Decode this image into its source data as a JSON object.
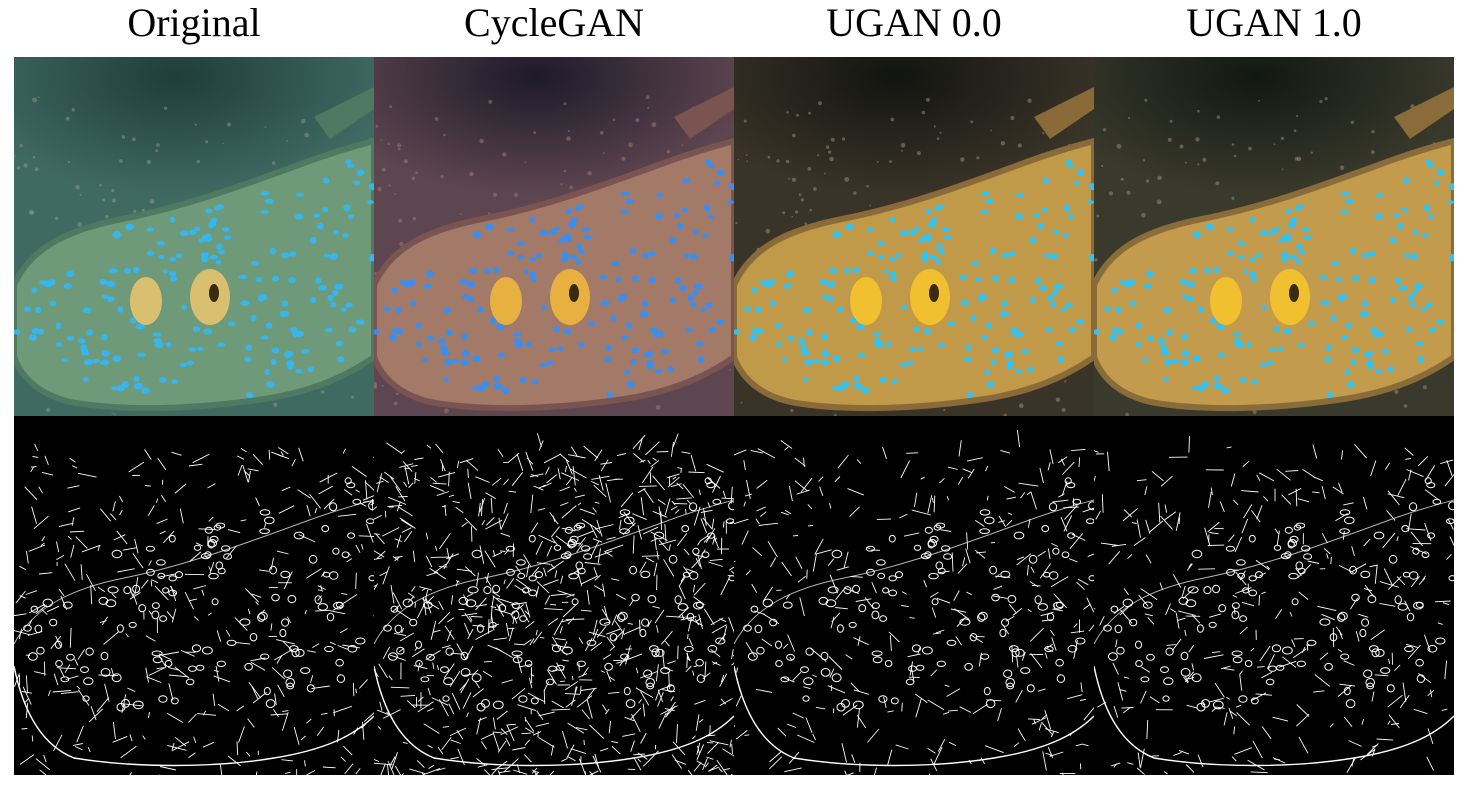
{
  "figure": {
    "columns": [
      {
        "id": "original",
        "title": "Original",
        "bg": "#3f6a62",
        "water": "#1f3d3c",
        "body": "#6f9a7a",
        "rim": "#4f7a62",
        "spot": "#35b6ee",
        "eye": "#d8c070",
        "sand": "#8f9a8a",
        "edge_density": 1.0
      },
      {
        "id": "cyclegan",
        "title": "CycleGAN",
        "bg": "#5e4650",
        "water": "#1e1a2a",
        "body": "#a37a68",
        "rim": "#7a5450",
        "spot": "#3a8ef0",
        "eye": "#e8b040",
        "sand": "#9a8078",
        "edge_density": 2.2
      },
      {
        "id": "ugan-0-0",
        "title": "UGAN 0.0",
        "bg": "#3a3428",
        "water": "#121410",
        "body": "#c09a48",
        "rim": "#8a6a38",
        "spot": "#35c2f0",
        "eye": "#f0c030",
        "sand": "#a09078",
        "edge_density": 0.9
      },
      {
        "id": "ugan-1-0",
        "title": "UGAN 1.0",
        "bg": "#3a3a2c",
        "water": "#121812",
        "body": "#c29c4c",
        "rim": "#8a6c3a",
        "spot": "#35c2f0",
        "eye": "#f0c030",
        "sand": "#a09078",
        "edge_density": 0.9
      }
    ]
  }
}
